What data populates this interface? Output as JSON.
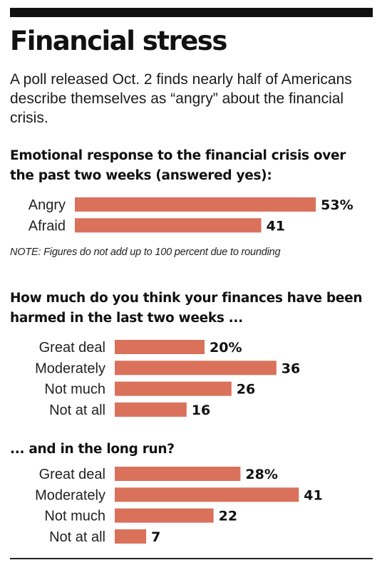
{
  "title": "Financial stress",
  "intro": "A poll released Oct. 2 finds nearly half of Americans describe themselves as “angry” about the financial crisis.",
  "note": "NOTE: Figures do not add up to 100 percent due to rounding",
  "colors": {
    "bar": "#d9715b",
    "text": "#111111",
    "rule": "#111111"
  },
  "chart_data": [
    {
      "type": "bar",
      "orientation": "horizontal",
      "title": "Emotional response to the financial crisis over the past two weeks (answered yes):",
      "categories": [
        "Angry",
        "Afraid"
      ],
      "values": [
        53,
        41
      ],
      "value_labels": [
        "53%",
        "41"
      ]
    },
    {
      "type": "bar",
      "orientation": "horizontal",
      "title": "How much do you think your finances have been harmed in the last two weeks ...",
      "categories": [
        "Great deal",
        "Moderately",
        "Not much",
        "Not at all"
      ],
      "values": [
        20,
        36,
        26,
        16
      ],
      "value_labels": [
        "20%",
        "36",
        "26",
        "16"
      ]
    },
    {
      "type": "bar",
      "orientation": "horizontal",
      "title": "... and in the long run?",
      "categories": [
        "Great deal",
        "Moderately",
        "Not much",
        "Not at all"
      ],
      "values": [
        28,
        41,
        22,
        7
      ],
      "value_labels": [
        "28%",
        "41",
        "22",
        "7"
      ]
    }
  ]
}
